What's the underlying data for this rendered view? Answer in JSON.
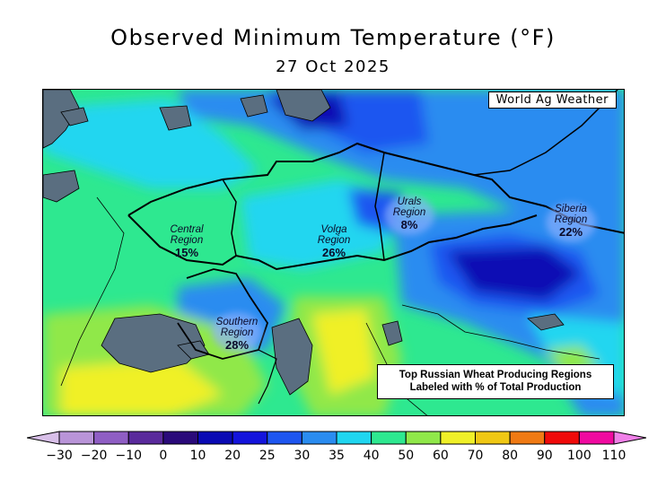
{
  "header": {
    "title": "Observed Minimum Temperature (°F)",
    "date": "27 Oct 2025"
  },
  "map": {
    "credit": "World Ag Weather",
    "note_lines": [
      "Top Russian Wheat Producing Regions",
      "Labeled with % of Total Production"
    ],
    "regions": [
      {
        "name_lines": [
          "Central",
          "Region"
        ],
        "percent": "15%"
      },
      {
        "name_lines": [
          "Volga",
          "Region"
        ],
        "percent": "26%"
      },
      {
        "name_lines": [
          "Urals",
          "Region"
        ],
        "percent": "8%"
      },
      {
        "name_lines": [
          "Siberia",
          "Region"
        ],
        "percent": "22%"
      },
      {
        "name_lines": [
          "Southern",
          "Region"
        ],
        "percent": "28%"
      }
    ]
  },
  "legend": {
    "ticks": [
      "−30",
      "−20",
      "−10",
      "0",
      "10",
      "20",
      "25",
      "30",
      "35",
      "40",
      "50",
      "60",
      "70",
      "80",
      "90",
      "100",
      "110"
    ],
    "colors": [
      "#d8bfe8",
      "#b994d8",
      "#8f5ec4",
      "#5a2a9c",
      "#2a0a7a",
      "#0a0ab4",
      "#1414dc",
      "#1e56f0",
      "#2a8cf0",
      "#20d6f0",
      "#2ee890",
      "#90e84a",
      "#f0f028",
      "#f0c814",
      "#f07a14",
      "#f00a0a",
      "#f00aa0",
      "#f080e8"
    ]
  },
  "colors": {
    "water": "#5a6e80",
    "boundary": "#000000"
  }
}
